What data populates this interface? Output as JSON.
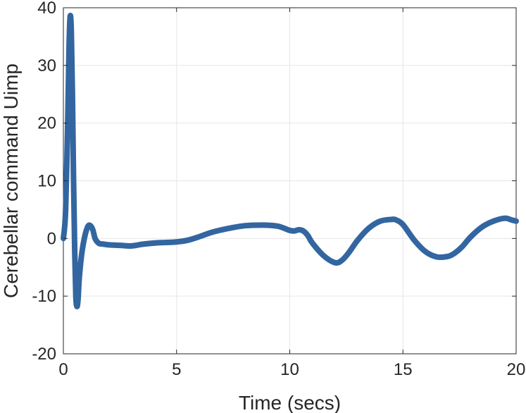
{
  "chart_data": {
    "type": "line",
    "title": "",
    "xlabel": "Time (secs)",
    "ylabel": "Cerebellar command Uimp",
    "xlim": [
      0,
      20
    ],
    "ylim": [
      -20,
      40
    ],
    "xticks": [
      0,
      5,
      10,
      15,
      20
    ],
    "yticks": [
      -20,
      -10,
      0,
      10,
      20,
      30,
      40
    ],
    "xtick_labels": [
      "0",
      "5",
      "10",
      "15",
      "20"
    ],
    "ytick_labels": [
      "-20",
      "-10",
      "0",
      "10",
      "20",
      "30",
      "40"
    ],
    "grid": true,
    "legend": "none",
    "series": [
      {
        "color": "#3366a0",
        "x": [
          0,
          0.1,
          0.2,
          0.25,
          0.3,
          0.35,
          0.4,
          0.45,
          0.5,
          0.55,
          0.6,
          0.65,
          0.7,
          0.8,
          0.9,
          1.0,
          1.1,
          1.2,
          1.3,
          1.4,
          1.5,
          1.6,
          1.8,
          2.0,
          2.5,
          3.0,
          3.5,
          4.0,
          4.5,
          5.0,
          5.5,
          6.0,
          6.5,
          7.0,
          7.5,
          8.0,
          8.5,
          9.0,
          9.5,
          10.0,
          10.2,
          10.4,
          10.6,
          10.8,
          11.0,
          11.5,
          12.0,
          12.3,
          12.6,
          13.0,
          13.5,
          14.0,
          14.5,
          14.7,
          15.0,
          15.5,
          16.0,
          16.5,
          17.0,
          17.3,
          17.6,
          18.0,
          18.5,
          19.0,
          19.5,
          19.8,
          20.0
        ],
        "y": [
          0,
          5,
          22,
          33,
          38.5,
          36,
          25,
          10,
          -2,
          -10,
          -11.8,
          -10.5,
          -7,
          -3,
          -0.5,
          1.2,
          2.2,
          2.2,
          1.5,
          0,
          -0.6,
          -0.9,
          -1.0,
          -1.1,
          -1.2,
          -1.3,
          -1.0,
          -0.8,
          -0.7,
          -0.6,
          -0.3,
          0.3,
          1.0,
          1.5,
          1.9,
          2.2,
          2.3,
          2.3,
          2.1,
          1.4,
          1.3,
          1.5,
          1.3,
          0.5,
          -0.8,
          -3.0,
          -4.2,
          -3.8,
          -2.5,
          -0.3,
          1.8,
          3.0,
          3.3,
          3.2,
          2.4,
          -0.3,
          -2.3,
          -3.2,
          -3.1,
          -2.5,
          -1.5,
          0.3,
          2.0,
          3.0,
          3.5,
          3.2,
          3.0
        ]
      }
    ]
  }
}
